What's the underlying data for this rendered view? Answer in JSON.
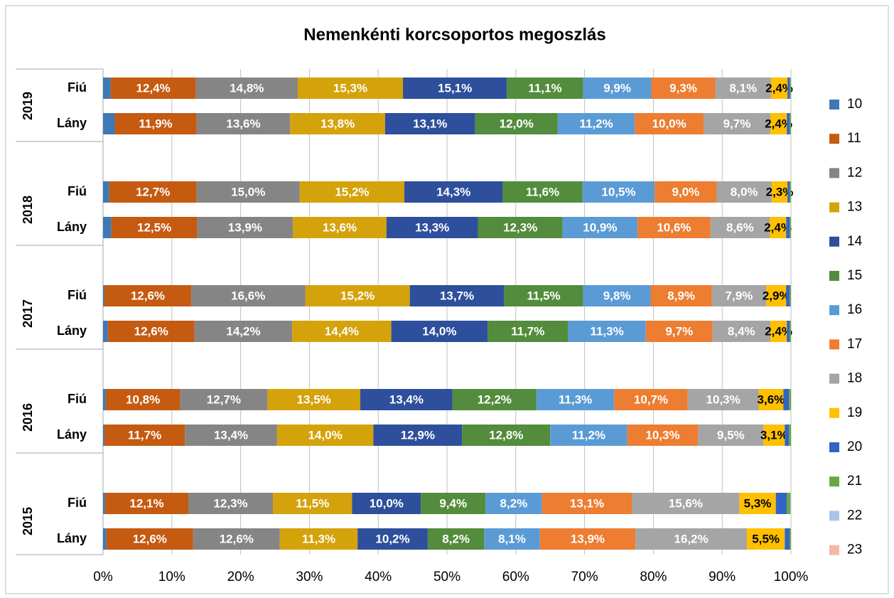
{
  "chart_data": {
    "type": "stacked_barh",
    "title": "Nemenkénti korcsoportos megoszlás",
    "groups": [
      "2019",
      "2018",
      "2017",
      "2016",
      "2015"
    ],
    "categories": [
      "Fiú",
      "Lány",
      "Fiú",
      "Lány",
      "Fiú",
      "Lány",
      "Fiú",
      "Lány",
      "Fiú",
      "Lány"
    ],
    "xlim": [
      0,
      100
    ],
    "xticks": [
      {
        "value": 0,
        "label": "0%"
      },
      {
        "value": 10,
        "label": "10%"
      },
      {
        "value": 20,
        "label": "20%"
      },
      {
        "value": 30,
        "label": "30%"
      },
      {
        "value": 40,
        "label": "40%"
      },
      {
        "value": 50,
        "label": "50%"
      },
      {
        "value": 60,
        "label": "60%"
      },
      {
        "value": 70,
        "label": "70%"
      },
      {
        "value": 80,
        "label": "80%"
      },
      {
        "value": 90,
        "label": "90%"
      },
      {
        "value": 100,
        "label": "100%"
      }
    ],
    "grid": true,
    "legend": "right",
    "series": [
      {
        "name": "10",
        "color": "#3f79b5",
        "values": [
          1.1,
          1.7,
          0.9,
          1.2,
          0.2,
          0.7,
          0.4,
          0.2,
          0.3,
          0.5
        ]
      },
      {
        "name": "11",
        "color": "#c55a11",
        "label_color": "#ffffff",
        "values": [
          12.4,
          11.9,
          12.7,
          12.5,
          12.6,
          12.6,
          10.8,
          11.7,
          12.1,
          12.6
        ],
        "value_labels": [
          "12,4%",
          "11,9%",
          "12,7%",
          "12,5%",
          "12,6%",
          "12,6%",
          "10,8%",
          "11,7%",
          "12,1%",
          "12,6%"
        ]
      },
      {
        "name": "12",
        "color": "#858585",
        "label_color": "#ffffff",
        "values": [
          14.8,
          13.6,
          15.0,
          13.9,
          16.6,
          14.2,
          12.7,
          13.4,
          12.3,
          12.6
        ],
        "value_labels": [
          "14,8%",
          "13,6%",
          "15,0%",
          "13,9%",
          "16,6%",
          "14,2%",
          "12,7%",
          "13,4%",
          "12,3%",
          "12,6%"
        ]
      },
      {
        "name": "13",
        "color": "#d4a20a",
        "label_color": "#ffffff",
        "values": [
          15.3,
          13.8,
          15.2,
          13.6,
          15.2,
          14.4,
          13.5,
          14.0,
          11.5,
          11.3
        ],
        "value_labels": [
          "15,3%",
          "13,8%",
          "15,2%",
          "13,6%",
          "15,2%",
          "14,4%",
          "13,5%",
          "14,0%",
          "11,5%",
          "11,3%"
        ]
      },
      {
        "name": "14",
        "color": "#2e4f9c",
        "label_color": "#ffffff",
        "values": [
          15.1,
          13.1,
          14.3,
          13.3,
          13.7,
          14.0,
          13.4,
          12.9,
          10.0,
          10.2
        ],
        "value_labels": [
          "15,1%",
          "13,1%",
          "14,3%",
          "13,3%",
          "13,7%",
          "14,0%",
          "13,4%",
          "12,9%",
          "10,0%",
          "10,2%"
        ]
      },
      {
        "name": "15",
        "color": "#528c3c",
        "label_color": "#ffffff",
        "values": [
          11.1,
          12.0,
          11.6,
          12.3,
          11.5,
          11.7,
          12.2,
          12.8,
          9.4,
          8.2
        ],
        "value_labels": [
          "11,1%",
          "12,0%",
          "11,6%",
          "12,3%",
          "11,5%",
          "11,7%",
          "12,2%",
          "12,8%",
          "9,4%",
          "8,2%"
        ]
      },
      {
        "name": "16",
        "color": "#5b9bd5",
        "label_color": "#ffffff",
        "values": [
          9.9,
          11.2,
          10.5,
          10.9,
          9.8,
          11.3,
          11.3,
          11.2,
          8.2,
          8.1
        ],
        "value_labels": [
          "9,9%",
          "11,2%",
          "10,5%",
          "10,9%",
          "9,8%",
          "11,3%",
          "11,3%",
          "11,2%",
          "8,2%",
          "8,1%"
        ]
      },
      {
        "name": "17",
        "color": "#ed7d31",
        "label_color": "#ffffff",
        "values": [
          9.3,
          10.0,
          9.0,
          10.6,
          8.9,
          9.7,
          10.7,
          10.3,
          13.1,
          13.9
        ],
        "value_labels": [
          "9,3%",
          "10,0%",
          "9,0%",
          "10,6%",
          "8,9%",
          "9,7%",
          "10,7%",
          "10,3%",
          "13,1%",
          "13,9%"
        ]
      },
      {
        "name": "18",
        "color": "#a5a5a5",
        "label_color": "#ffffff",
        "values": [
          8.1,
          9.7,
          8.0,
          8.6,
          7.9,
          8.4,
          10.3,
          9.5,
          15.6,
          16.2
        ],
        "value_labels": [
          "8,1%",
          "9,7%",
          "8,0%",
          "8,6%",
          "7,9%",
          "8,4%",
          "10,3%",
          "9,5%",
          "15,6%",
          "16,2%"
        ]
      },
      {
        "name": "19",
        "color": "#ffc000",
        "label_color": "#000000",
        "values": [
          2.4,
          2.4,
          2.3,
          2.4,
          2.9,
          2.4,
          3.6,
          3.1,
          5.3,
          5.5
        ],
        "value_labels": [
          "2,4%",
          "2,4%",
          "2,3%",
          "2,4%",
          "2,9%",
          "2,4%",
          "3,6%",
          "3,1%",
          "5,3%",
          "5,5%"
        ]
      },
      {
        "name": "20",
        "color": "#3264c8",
        "values": [
          0.3,
          0.4,
          0.3,
          0.5,
          0.5,
          0.4,
          0.8,
          0.6,
          1.6,
          0.7
        ]
      },
      {
        "name": "21",
        "color": "#66a844",
        "values": [
          0.2,
          0.2,
          0.2,
          0.2,
          0.2,
          0.2,
          0.3,
          0.3,
          0.5,
          0.2
        ]
      },
      {
        "name": "22",
        "color": "#a9c4eb",
        "values": [
          0,
          0,
          0,
          0,
          0,
          0,
          0,
          0,
          0.1,
          0
        ]
      },
      {
        "name": "23",
        "color": "#f4b8a4",
        "values": [
          0,
          0,
          0,
          0,
          0,
          0,
          0,
          0,
          0,
          0
        ]
      }
    ]
  }
}
